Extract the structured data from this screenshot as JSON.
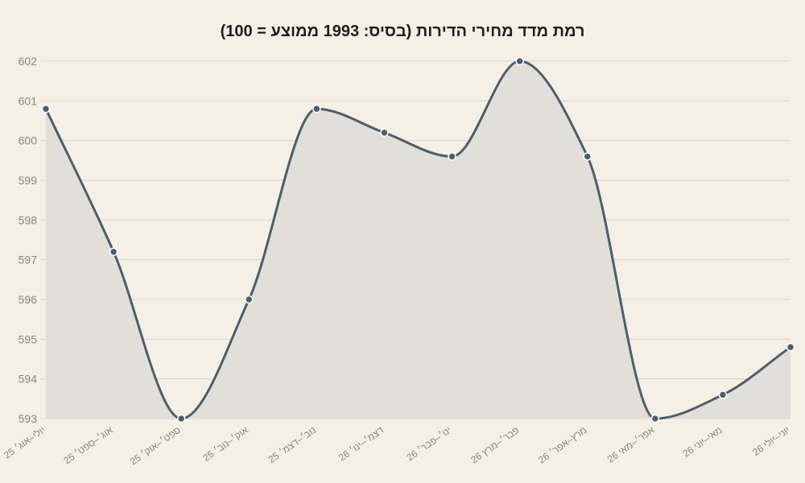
{
  "chart_data": {
    "type": "area",
    "title": "רמת מדד מחירי הדירות (בסיס: 1993 ממוצע = 100)",
    "xlabel": "",
    "ylabel": "",
    "categories": [
      "יולי–אוג׳ 25",
      "אוג׳–ספט׳ 25",
      "ספט׳–אוק׳ 25",
      "אוק׳–נוב׳ 25",
      "נוב׳–דצמ׳ 25",
      "דצמ׳–ינו׳ 26",
      "ינו׳–פבר׳ 26",
      "פבר׳–מרץ 26",
      "מרץ–אפר׳ 26",
      "אפר׳–מאי 26",
      "מאי–יוני 26",
      "יוני–יולי 26"
    ],
    "values": [
      600.8,
      597.2,
      593.0,
      596.0,
      600.8,
      600.2,
      599.6,
      602.0,
      599.6,
      593.0,
      593.6,
      594.8
    ],
    "ylim": [
      593,
      602
    ],
    "yticks": [
      593,
      594,
      595,
      596,
      597,
      598,
      599,
      600,
      601,
      602
    ],
    "grid": true,
    "colors": {
      "line": "#4a5f6e",
      "fill": "#e2dfd9",
      "background": "#f5efe6"
    }
  }
}
